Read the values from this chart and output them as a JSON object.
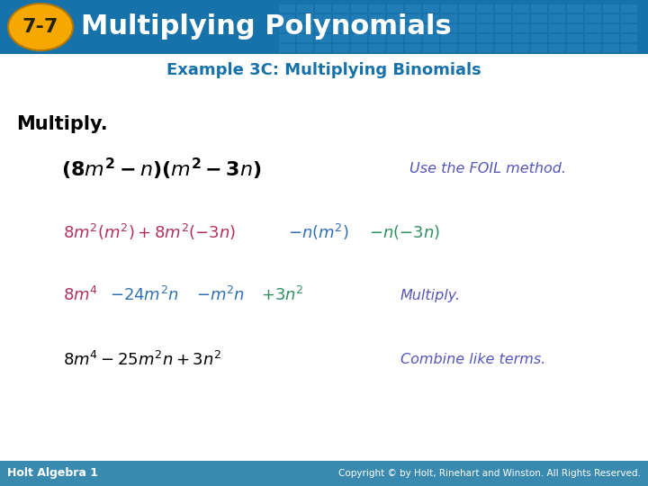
{
  "title_text": "Multiplying Polynomials",
  "lesson_num": "7-7",
  "example_title": "Example 3C: Multiplying Binomials",
  "multiply_label": "Multiply.",
  "header_bg_color": "#1872aa",
  "header_text_color": "#ffffff",
  "badge_bg_color": "#f5a800",
  "badge_text_color": "#1a1a1a",
  "example_title_color": "#1872aa",
  "multiply_label_color": "#000000",
  "footer_bg_color": "#3a8ab0",
  "footer_left": "Holt Algebra 1",
  "footer_right": "Copyright © by Holt, Rinehart and Winston. All Rights Reserved.",
  "footer_text_color": "#ffffff",
  "body_bg_color": "#ffffff",
  "line1_color": "#000000",
  "line1_note_color": "#5555bb",
  "color_red": "#b03060",
  "color_blue": "#3070b0",
  "color_green": "#309060",
  "note_color": "#5555bb",
  "line4_color": "#000000"
}
